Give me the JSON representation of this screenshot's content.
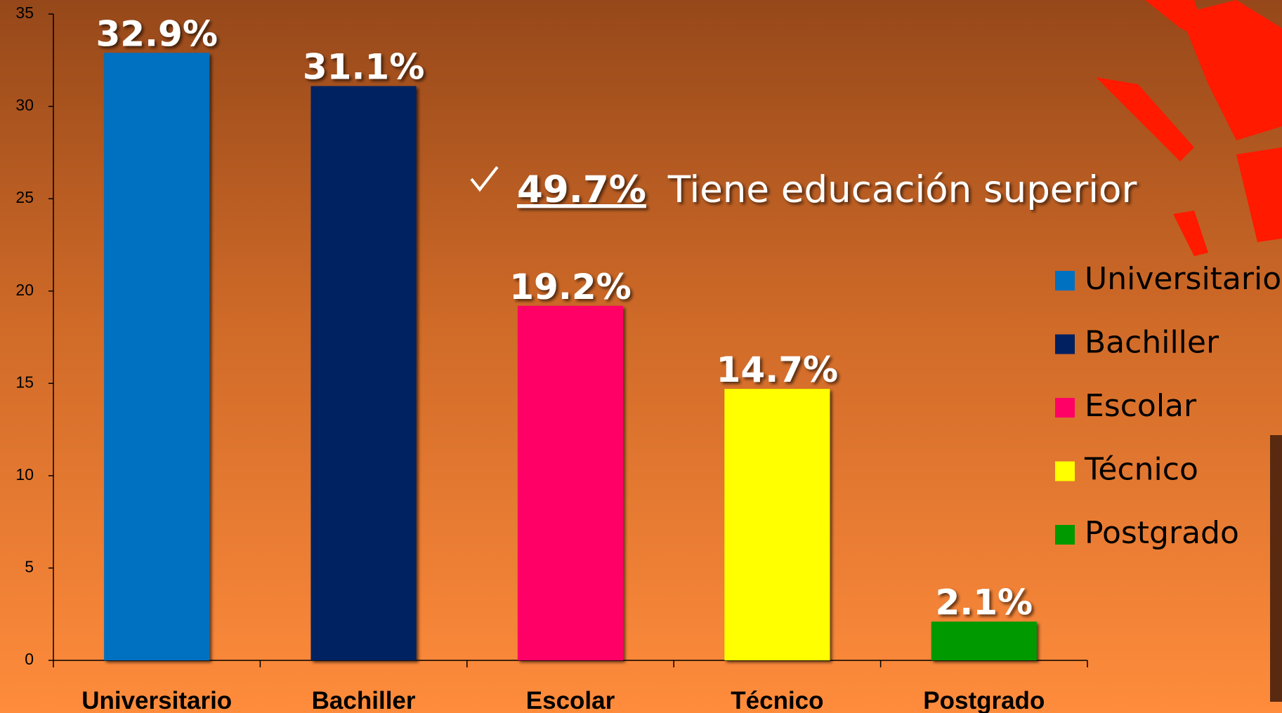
{
  "chart_data": {
    "type": "bar",
    "categories": [
      "Universitario",
      "Bachiller",
      "Escolar",
      "Técnico",
      "Postgrado"
    ],
    "values": [
      32.9,
      31.1,
      19.2,
      14.7,
      2.1
    ],
    "value_labels": [
      "32.9%",
      "31.1%",
      "19.2%",
      "14.7%",
      "2.1%"
    ],
    "colors": [
      "#0070c0",
      "#002060",
      "#ff0066",
      "#ffff00",
      "#009900"
    ],
    "ylim": [
      0,
      35
    ],
    "yticks": [
      0,
      5,
      10,
      15,
      20,
      25,
      30,
      35
    ],
    "legend": "right",
    "annotation": {
      "highlight": "49.7%",
      "text": "Tiene educación superior"
    }
  }
}
